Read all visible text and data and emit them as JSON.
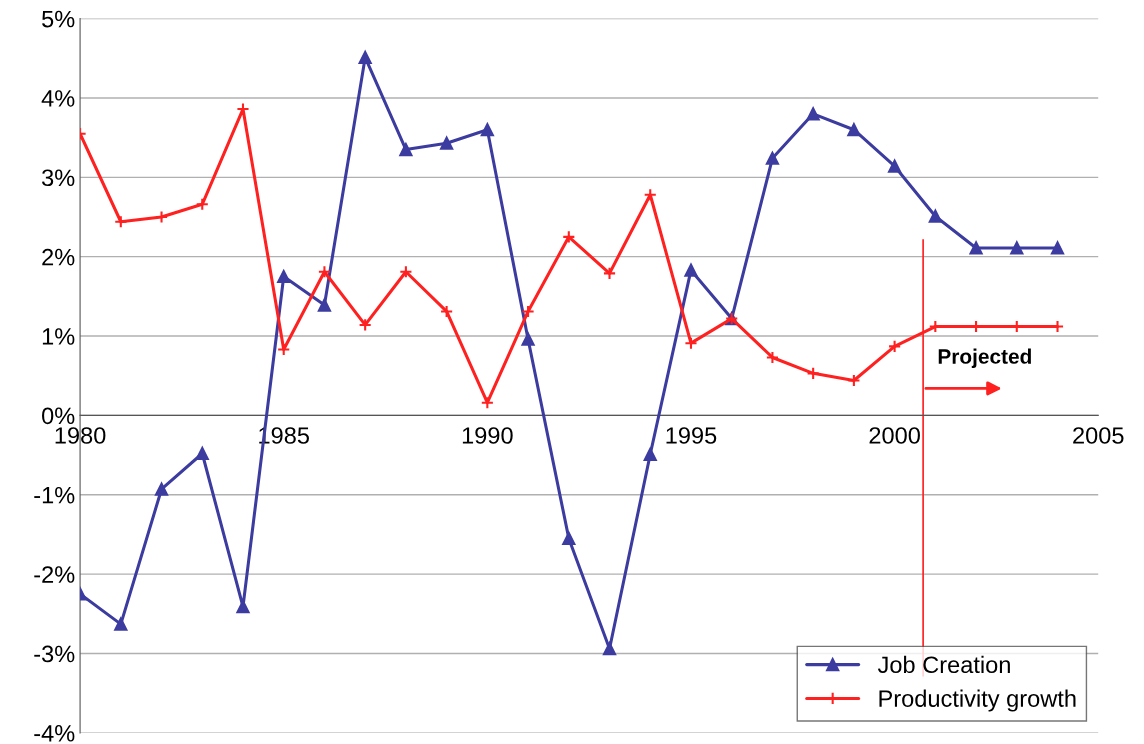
{
  "chart_data": {
    "type": "line",
    "x": [
      1980,
      1981,
      1982,
      1983,
      1984,
      1985,
      1986,
      1987,
      1988,
      1989,
      1990,
      1991,
      1992,
      1993,
      1994,
      1995,
      1996,
      1997,
      1998,
      1999,
      2000,
      2001,
      2002,
      2003,
      2004
    ],
    "series": [
      {
        "name": "Job Creation",
        "color": "#3c3ca0",
        "marker": "triangle",
        "values": [
          -2.25,
          -2.63,
          -0.93,
          -0.48,
          -2.41,
          1.75,
          1.39,
          4.51,
          3.35,
          3.43,
          3.6,
          0.96,
          -1.55,
          -2.94,
          -0.49,
          1.83,
          1.22,
          3.24,
          3.8,
          3.6,
          3.14,
          2.51,
          2.11,
          2.11,
          2.11
        ]
      },
      {
        "name": "Productivity growth",
        "color": "#ff2020",
        "marker": "cross",
        "values": [
          3.55,
          2.44,
          2.5,
          2.66,
          3.86,
          0.83,
          1.81,
          1.14,
          1.81,
          1.31,
          0.16,
          1.31,
          2.25,
          1.79,
          2.78,
          0.91,
          1.22,
          0.73,
          0.53,
          0.44,
          0.87,
          1.12,
          1.12,
          1.12,
          1.12
        ]
      }
    ],
    "xlim": [
      1980,
      2005
    ],
    "xticks": [
      1980,
      1985,
      1990,
      1995,
      2000,
      2005
    ],
    "ylim": [
      -4,
      5
    ],
    "yticks": [
      {
        "value": -4,
        "label": "-4%"
      },
      {
        "value": -3,
        "label": "-3%"
      },
      {
        "value": -2,
        "label": "-2%"
      },
      {
        "value": -1,
        "label": "-1%"
      },
      {
        "value": 0,
        "label": "0%"
      },
      {
        "value": 1,
        "label": "1%"
      },
      {
        "value": 2,
        "label": "2%"
      },
      {
        "value": 3,
        "label": "3%"
      },
      {
        "value": 4,
        "label": "4%"
      },
      {
        "value": 5,
        "label": "5%"
      }
    ],
    "grid": "y",
    "legend": "bottom right",
    "line_style": "solid",
    "ref_lines": [
      {
        "axis": "x",
        "value": 2000.7,
        "color": "#ff2020"
      }
    ],
    "annotations": [
      {
        "text": "Projected",
        "x": 2000.7,
        "y": 0.34
      }
    ]
  }
}
